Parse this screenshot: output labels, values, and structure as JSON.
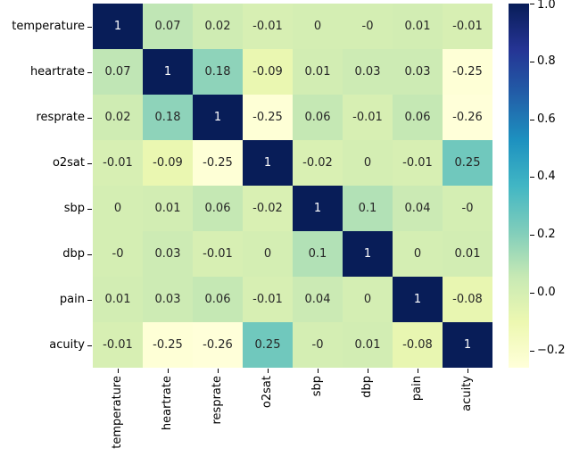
{
  "page": {
    "background": "#ffffff"
  },
  "chart_data": {
    "type": "heatmap",
    "title": "",
    "description": "Correlation matrix heatmap of vital-sign variables with annotated coefficients",
    "categories": [
      "temperature",
      "heartrate",
      "resprate",
      "o2sat",
      "sbp",
      "dbp",
      "pain",
      "acuity"
    ],
    "rows": [
      "temperature",
      "heartrate",
      "resprate",
      "o2sat",
      "sbp",
      "dbp",
      "pain",
      "acuity"
    ],
    "values": [
      [
        "1",
        "0.07",
        "0.02",
        "-0.01",
        "0",
        "-0",
        "0.01",
        "-0.01"
      ],
      [
        "0.07",
        "1",
        "0.18",
        "-0.09",
        "0.01",
        "0.03",
        "0.03",
        "-0.25"
      ],
      [
        "0.02",
        "0.18",
        "1",
        "-0.25",
        "0.06",
        "-0.01",
        "0.06",
        "-0.26"
      ],
      [
        "-0.01",
        "-0.09",
        "-0.25",
        "1",
        "-0.02",
        "0",
        "-0.01",
        "0.25"
      ],
      [
        "0",
        "0.01",
        "0.06",
        "-0.02",
        "1",
        "0.1",
        "0.04",
        "-0"
      ],
      [
        "-0",
        "0.03",
        "-0.01",
        "0",
        "0.1",
        "1",
        "0",
        "0.01"
      ],
      [
        "0.01",
        "0.03",
        "0.06",
        "-0.01",
        "0.04",
        "0",
        "1",
        "-0.08"
      ],
      [
        "-0.01",
        "-0.25",
        "-0.26",
        "0.25",
        "-0",
        "0.01",
        "-0.08",
        "1"
      ]
    ],
    "vmin": -0.26,
    "vmax": 1.0,
    "colormap": {
      "name": "YlGnBu",
      "anchors": [
        "#ffffd9",
        "#edf8b1",
        "#c7e9b4",
        "#7fcdbb",
        "#41b6c4",
        "#1d91c0",
        "#225ea8",
        "#253494",
        "#081d58"
      ]
    },
    "colorbar": {
      "position": "right",
      "tick_labels": [
        "1.0",
        "0.8",
        "0.6",
        "0.4",
        "0.2",
        "0.0",
        "−0.2"
      ],
      "tick_values": [
        1.0,
        0.8,
        0.6,
        0.4,
        0.2,
        0.0,
        -0.2
      ]
    },
    "annotation_colors": {
      "dark": "#262626",
      "light": "#ffffff"
    },
    "axis_text_color": "#000000",
    "grid": false,
    "legend": false
  }
}
